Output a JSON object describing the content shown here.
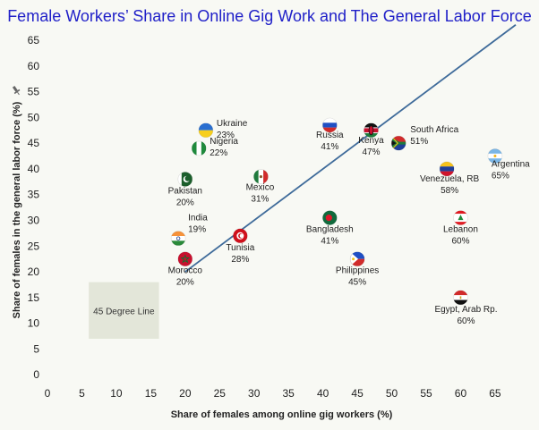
{
  "chart_data": {
    "type": "scatter",
    "title": "Female Workers’ Share in Online Gig Work and The General Labor Force",
    "xlabel": "Share of females among online gig workers (%)",
    "ylabel": "Share of females in the general labor force (%)",
    "xlim": [
      0,
      68
    ],
    "ylim": [
      -1,
      65
    ],
    "xticks": [
      0,
      5,
      10,
      15,
      20,
      25,
      30,
      35,
      40,
      45,
      50,
      55,
      60,
      65
    ],
    "yticks": [
      0,
      5,
      10,
      15,
      20,
      25,
      30,
      35,
      40,
      45,
      50,
      55,
      60,
      65
    ],
    "reference_line": {
      "label": "45 Degree Line",
      "from": [
        20,
        20
      ],
      "to": [
        68,
        68
      ],
      "color": "#3f6b9a"
    },
    "points": [
      {
        "country": "Ukraine",
        "pct": "23%",
        "x": 23,
        "y": 47.5,
        "flag": "ukraine"
      },
      {
        "country": "Nigeria",
        "pct": "22%",
        "x": 22,
        "y": 44,
        "flag": "nigeria"
      },
      {
        "country": "Pakistan",
        "pct": "20%",
        "x": 20,
        "y": 38,
        "flag": "pakistan"
      },
      {
        "country": "Mexico",
        "pct": "31%",
        "x": 31,
        "y": 38.5,
        "flag": "mexico"
      },
      {
        "country": "India",
        "pct": "19%",
        "x": 19,
        "y": 26.5,
        "flag": "india"
      },
      {
        "country": "Tunisia",
        "pct": "28%",
        "x": 28,
        "y": 27,
        "flag": "tunisia"
      },
      {
        "country": "Morocco",
        "pct": "20%",
        "x": 20,
        "y": 22.5,
        "flag": "morocco"
      },
      {
        "country": "Russia",
        "pct": "41%",
        "x": 41,
        "y": 48.5,
        "flag": "russia"
      },
      {
        "country": "Kenya",
        "pct": "47%",
        "x": 47,
        "y": 47.5,
        "flag": "kenya"
      },
      {
        "country": "South Africa",
        "pct": "51%",
        "x": 51,
        "y": 45,
        "flag": "southafrica"
      },
      {
        "country": "Argentina",
        "pct": "65%",
        "x": 65,
        "y": 42.5,
        "flag": "argentina"
      },
      {
        "country": "Venezuela, RB",
        "pct": "58%",
        "x": 58,
        "y": 40,
        "flag": "venezuela"
      },
      {
        "country": "Bangladesh",
        "pct": "41%",
        "x": 41,
        "y": 30.5,
        "flag": "bangladesh"
      },
      {
        "country": "Lebanon",
        "pct": "60%",
        "x": 60,
        "y": 30.5,
        "flag": "lebanon"
      },
      {
        "country": "Philippines",
        "pct": "45%",
        "x": 45,
        "y": 22.5,
        "flag": "philippines"
      },
      {
        "country": "Egypt, Arab Rp.",
        "pct": "60%",
        "x": 60,
        "y": 15,
        "flag": "egypt"
      }
    ],
    "grid": false,
    "legend": "none"
  }
}
